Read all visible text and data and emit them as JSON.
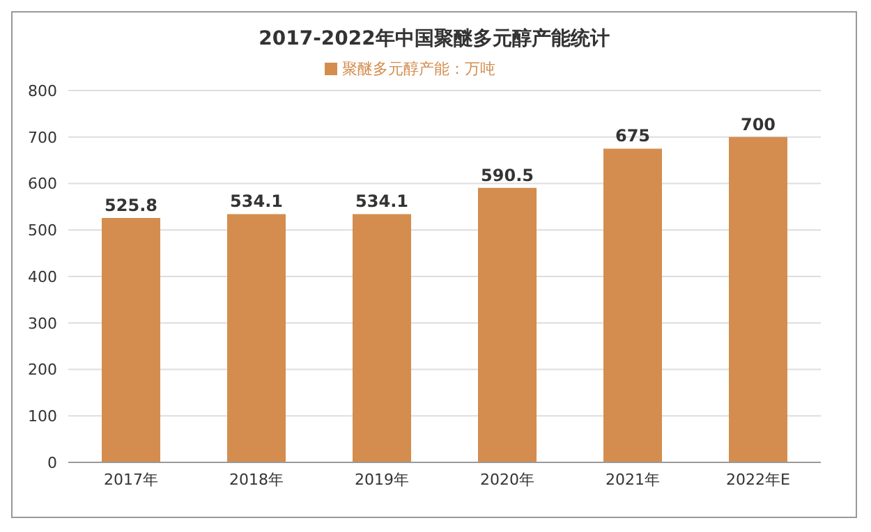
{
  "chart_data": {
    "type": "bar",
    "title": "2017-2022年中国聚醚多元醇产能统计",
    "categories": [
      "2017年",
      "2018年",
      "2019年",
      "2020年",
      "2021年",
      "2022年E"
    ],
    "series": [
      {
        "name": "聚醚多元醇产能：万吨",
        "color": "#d48d4e",
        "values": [
          525.8,
          534.1,
          534.1,
          590.5,
          675,
          700
        ]
      }
    ],
    "ylim": [
      0,
      800
    ],
    "yticks": [
      0,
      100,
      200,
      300,
      400,
      500,
      600,
      700,
      800
    ],
    "grid": "y",
    "legend": "top",
    "data_labels": true
  }
}
